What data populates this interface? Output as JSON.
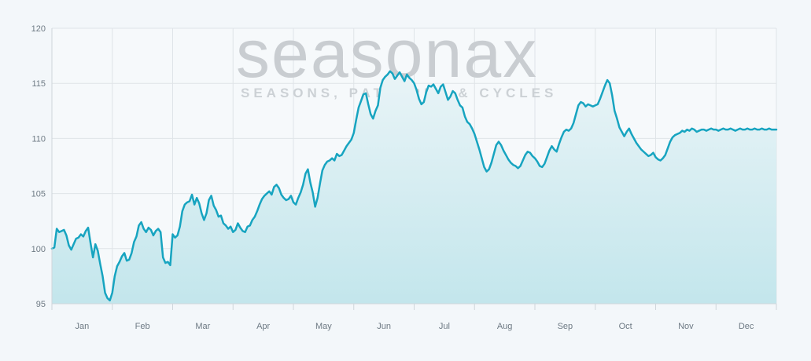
{
  "watermark": {
    "brand": "seasonax",
    "tagline": "SEASONS, PATTERNS & CYCLES"
  },
  "chart_data": {
    "type": "area",
    "title": "",
    "xlabel": "",
    "ylabel": "",
    "ylim": [
      95,
      120
    ],
    "yticks": [
      95,
      100,
      105,
      110,
      115,
      120
    ],
    "months": [
      "Jan",
      "Feb",
      "Mar",
      "Apr",
      "May",
      "Jun",
      "Jul",
      "Aug",
      "Sep",
      "Oct",
      "Nov",
      "Dec"
    ],
    "grid": true,
    "colors": {
      "line": "#17a4c0",
      "fill_top": "#e9f4f7",
      "fill_bottom": "#c3e6ec",
      "grid": "#dfe4e8"
    },
    "series": [
      {
        "x": [
          0,
          0.04,
          0.08,
          0.12,
          0.16,
          0.2,
          0.24,
          0.28,
          0.32,
          0.36,
          0.4,
          0.44,
          0.48,
          0.52,
          0.56,
          0.6,
          0.64,
          0.68,
          0.72,
          0.76,
          0.8,
          0.84,
          0.88,
          0.92,
          0.96,
          1.0,
          1.04,
          1.08,
          1.12,
          1.16,
          1.2,
          1.24,
          1.28,
          1.32,
          1.36,
          1.4,
          1.44,
          1.48,
          1.52,
          1.56,
          1.6,
          1.64,
          1.68,
          1.72,
          1.76,
          1.8,
          1.84,
          1.88,
          1.92,
          1.96,
          2.0,
          2.04,
          2.08,
          2.12,
          2.16,
          2.2,
          2.24,
          2.28,
          2.32,
          2.36,
          2.4,
          2.44,
          2.48,
          2.52,
          2.56,
          2.6,
          2.64,
          2.68,
          2.72,
          2.76,
          2.8,
          2.84,
          2.88,
          2.92,
          2.96,
          3.0,
          3.04,
          3.08,
          3.12,
          3.16,
          3.2,
          3.24,
          3.28,
          3.32,
          3.36,
          3.4,
          3.44,
          3.48,
          3.52,
          3.56,
          3.6,
          3.64,
          3.68,
          3.72,
          3.76,
          3.8,
          3.84,
          3.88,
          3.92,
          3.96,
          4.0,
          4.04,
          4.08,
          4.12,
          4.16,
          4.2,
          4.24,
          4.28,
          4.32,
          4.36,
          4.4,
          4.44,
          4.48,
          4.52,
          4.56,
          4.6,
          4.64,
          4.68,
          4.72,
          4.76,
          4.8,
          4.84,
          4.88,
          4.92,
          4.96,
          5.0,
          5.04,
          5.08,
          5.12,
          5.16,
          5.2,
          5.24,
          5.28,
          5.32,
          5.36,
          5.4,
          5.44,
          5.48,
          5.52,
          5.56,
          5.6,
          5.64,
          5.68,
          5.72,
          5.76,
          5.8,
          5.84,
          5.88,
          5.92,
          5.96,
          6.0,
          6.04,
          6.08,
          6.12,
          6.16,
          6.2,
          6.24,
          6.28,
          6.32,
          6.36,
          6.4,
          6.44,
          6.48,
          6.52,
          6.56,
          6.6,
          6.64,
          6.68,
          6.72,
          6.76,
          6.8,
          6.84,
          6.88,
          6.92,
          6.96,
          7.0,
          7.04,
          7.08,
          7.12,
          7.16,
          7.2,
          7.24,
          7.28,
          7.32,
          7.36,
          7.4,
          7.44,
          7.48,
          7.52,
          7.56,
          7.6,
          7.64,
          7.68,
          7.72,
          7.76,
          7.8,
          7.84,
          7.88,
          7.92,
          7.96,
          8.0,
          8.04,
          8.08,
          8.12,
          8.16,
          8.2,
          8.24,
          8.28,
          8.32,
          8.36,
          8.4,
          8.44,
          8.48,
          8.52,
          8.56,
          8.6,
          8.64,
          8.68,
          8.72,
          8.76,
          8.8,
          8.84,
          8.88,
          8.92,
          8.96,
          9.0,
          9.04,
          9.08,
          9.12,
          9.16,
          9.2,
          9.24,
          9.28,
          9.32,
          9.36,
          9.4,
          9.44,
          9.48,
          9.52,
          9.56,
          9.6,
          9.64,
          9.68,
          9.72,
          9.76,
          9.8,
          9.84,
          9.88,
          9.92,
          9.96,
          10.0,
          10.04,
          10.08,
          10.12,
          10.16,
          10.2,
          10.24,
          10.28,
          10.32,
          10.36,
          10.4,
          10.44,
          10.48,
          10.52,
          10.56,
          10.6,
          10.64,
          10.68,
          10.72,
          10.76,
          10.8,
          10.84,
          10.88,
          10.92,
          10.96,
          11.0,
          11.04,
          11.08,
          11.12,
          11.16,
          11.2,
          11.24,
          11.28,
          11.32,
          11.36,
          11.4,
          11.44,
          11.48,
          11.52,
          11.56,
          11.6,
          11.64,
          11.68,
          11.72,
          11.76,
          11.8,
          11.84,
          11.88,
          11.92,
          11.96,
          12.0
        ],
        "values": [
          100.0,
          100.1,
          101.8,
          101.5,
          101.6,
          101.7,
          101.2,
          100.3,
          99.9,
          100.4,
          100.9,
          101.0,
          101.3,
          101.1,
          101.6,
          101.9,
          100.5,
          99.2,
          100.4,
          99.8,
          98.6,
          97.5,
          96.0,
          95.5,
          95.3,
          96.0,
          97.5,
          98.4,
          98.8,
          99.3,
          99.6,
          98.9,
          99.0,
          99.6,
          100.6,
          101.1,
          102.1,
          102.4,
          101.8,
          101.5,
          101.9,
          101.7,
          101.2,
          101.6,
          101.8,
          101.5,
          99.2,
          98.7,
          98.8,
          98.5,
          101.3,
          101.0,
          101.2,
          102.0,
          103.4,
          104.0,
          104.2,
          104.3,
          104.9,
          104.0,
          104.6,
          104.1,
          103.2,
          102.6,
          103.2,
          104.4,
          104.8,
          103.9,
          103.5,
          102.9,
          103.0,
          102.3,
          102.1,
          101.8,
          102.0,
          101.5,
          101.7,
          102.3,
          101.9,
          101.6,
          101.5,
          102.0,
          102.1,
          102.6,
          102.9,
          103.4,
          104.0,
          104.5,
          104.8,
          105.0,
          105.2,
          104.9,
          105.6,
          105.8,
          105.5,
          104.9,
          104.6,
          104.4,
          104.5,
          104.8,
          104.2,
          104.0,
          104.6,
          105.1,
          105.8,
          106.8,
          107.2,
          106.0,
          105.1,
          103.8,
          104.6,
          105.9,
          107.1,
          107.6,
          107.9,
          108.0,
          108.2,
          108.0,
          108.6,
          108.4,
          108.5,
          108.9,
          109.3,
          109.6,
          109.9,
          110.5,
          111.7,
          112.8,
          113.4,
          114.0,
          114.1,
          113.1,
          112.2,
          111.8,
          112.5,
          113.0,
          114.6,
          115.3,
          115.6,
          115.8,
          116.1,
          115.9,
          115.4,
          115.7,
          116.0,
          115.6,
          115.2,
          115.8,
          115.5,
          115.3,
          115.0,
          114.4,
          113.6,
          113.1,
          113.3,
          114.2,
          114.8,
          114.7,
          114.9,
          114.5,
          114.1,
          114.7,
          114.9,
          114.2,
          113.5,
          113.8,
          114.3,
          114.1,
          113.5,
          113.0,
          112.8,
          112.0,
          111.5,
          111.3,
          110.9,
          110.4,
          109.7,
          109.0,
          108.2,
          107.4,
          107.0,
          107.2,
          107.8,
          108.6,
          109.4,
          109.7,
          109.4,
          108.9,
          108.5,
          108.1,
          107.8,
          107.6,
          107.5,
          107.3,
          107.5,
          108.0,
          108.5,
          108.8,
          108.7,
          108.4,
          108.2,
          107.9,
          107.5,
          107.4,
          107.7,
          108.3,
          108.9,
          109.3,
          109.0,
          108.8,
          109.5,
          110.1,
          110.6,
          110.8,
          110.7,
          110.9,
          111.4,
          112.2,
          113.0,
          113.3,
          113.2,
          112.9,
          113.1,
          113.0,
          112.9,
          113.0,
          113.1,
          113.6,
          114.2,
          114.8,
          115.3,
          115.0,
          113.9,
          112.5,
          111.8,
          111.0,
          110.6,
          110.2,
          110.6,
          110.9,
          110.4,
          110.0,
          109.6,
          109.3,
          109.0,
          108.8,
          108.6,
          108.4,
          108.5,
          108.7,
          108.3,
          108.1,
          108.0,
          108.2,
          108.5,
          109.1,
          109.7,
          110.1,
          110.3,
          110.4,
          110.5,
          110.7,
          110.6,
          110.8,
          110.7,
          110.9,
          110.8,
          110.6,
          110.7,
          110.8,
          110.8,
          110.7,
          110.8,
          110.9,
          110.8,
          110.8,
          110.7,
          110.8,
          110.9,
          110.8,
          110.8,
          110.9,
          110.8,
          110.7,
          110.8,
          110.9,
          110.8,
          110.8,
          110.9,
          110.8,
          110.8,
          110.9,
          110.8,
          110.8,
          110.9,
          110.8,
          110.8,
          110.9,
          110.8,
          110.8,
          110.8
        ]
      }
    ]
  }
}
